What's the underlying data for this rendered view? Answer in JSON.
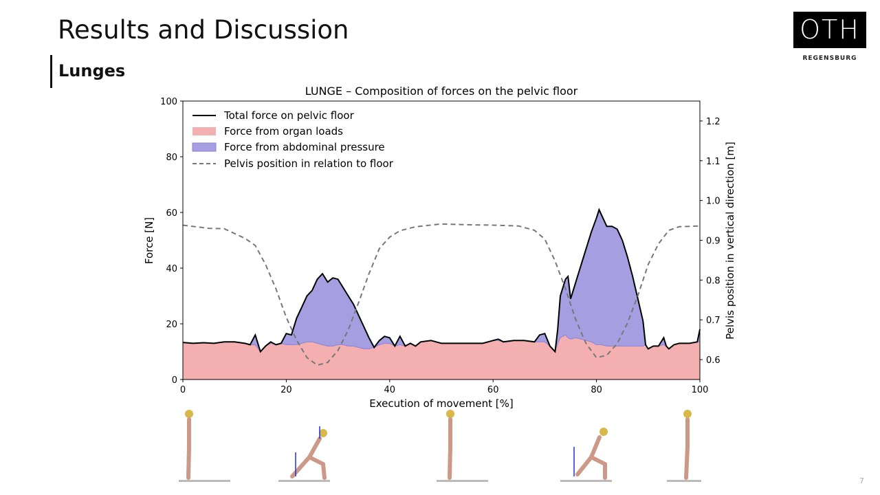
{
  "slide": {
    "title": "Results and Discussion",
    "subtitle": "Lunges",
    "logo_text": "OTH",
    "logo_sub": "REGENSBURG",
    "page": "7"
  },
  "chart_data": {
    "type": "area",
    "title": "LUNGE – Composition of forces on the pelvic floor",
    "xlabel": "Execution of movement [%]",
    "ylabel": "Force [N]",
    "y2label": "Pelvis position in vertical direction [m]",
    "xlim": [
      0,
      100
    ],
    "ylim": [
      0,
      100
    ],
    "y2lim": [
      0.55,
      1.25
    ],
    "xticks": [
      "0",
      "20",
      "40",
      "60",
      "80",
      "100"
    ],
    "yticks": [
      "0",
      "20",
      "40",
      "60",
      "80",
      "100"
    ],
    "y2ticks": [
      "0.6",
      "0.7",
      "0.8",
      "0.9",
      "1.0",
      "1.1",
      "1.2"
    ],
    "legend": {
      "placement": "top-left",
      "entries": [
        "Total force on pelvic floor",
        "Force from organ loads",
        "Force from abdominal pressure",
        "Pelvis position in relation to floor"
      ]
    },
    "colors": {
      "total": "#000000",
      "organ": "#f4b0b0",
      "abdominal": "#a59ee0",
      "pelvis": "#777777"
    },
    "force_x": [
      0,
      2,
      4,
      6,
      8,
      10,
      12,
      13,
      14,
      15,
      16,
      17,
      18,
      19,
      20,
      21,
      22,
      23,
      24,
      25,
      26,
      27,
      28,
      29,
      30,
      31,
      32,
      33,
      34,
      35,
      36,
      37,
      38,
      39,
      40,
      41,
      42,
      43,
      44,
      45,
      46,
      48,
      50,
      54,
      58,
      60,
      61,
      62,
      64,
      66,
      68,
      69,
      70,
      71,
      72,
      72.5,
      73,
      74,
      74.5,
      75,
      76,
      77,
      78,
      79,
      80,
      80.5,
      81,
      82,
      83,
      84,
      85,
      86,
      87,
      88,
      89,
      89.5,
      90,
      91,
      92,
      93,
      93.5,
      94,
      95,
      96,
      98,
      99.5,
      100
    ],
    "total": [
      13.3,
      13,
      13.2,
      13,
      13.5,
      13.5,
      13,
      12.5,
      16,
      10,
      12,
      13.5,
      12.5,
      13,
      16.5,
      16,
      22,
      26,
      30,
      32,
      36,
      38,
      35,
      36.5,
      36,
      33,
      30,
      27,
      23,
      19,
      15,
      11.5,
      14,
      15.5,
      15,
      12,
      15.5,
      12,
      13,
      12,
      13.5,
      14,
      13,
      13,
      13,
      14,
      14.5,
      13.5,
      14,
      14,
      13.5,
      16,
      16.5,
      12,
      10,
      18,
      30,
      36,
      37,
      29,
      35,
      41,
      47,
      53,
      58,
      61,
      59,
      55,
      55,
      54,
      50,
      44,
      37,
      29,
      21,
      12.5,
      11,
      12,
      12,
      15,
      12,
      11,
      12.5,
      13,
      13,
      13.5,
      18
    ],
    "organ": [
      13.3,
      13,
      13.2,
      13,
      13.5,
      13.5,
      13,
      12.5,
      12.5,
      10,
      12,
      13,
      12.5,
      13,
      12.5,
      12.5,
      12.5,
      13,
      13.5,
      13.5,
      13,
      12.5,
      12,
      12,
      12.5,
      12.5,
      12,
      12,
      11.5,
      11,
      11,
      11.5,
      12.5,
      13,
      13,
      12,
      12.5,
      12,
      13,
      12,
      13.5,
      14,
      13,
      13,
      13,
      14,
      14,
      13.5,
      14,
      14,
      13.5,
      13.5,
      13.5,
      12,
      10,
      13,
      15,
      16,
      15,
      14.5,
      15,
      14.5,
      14,
      13.5,
      12.5,
      12.5,
      12.5,
      12,
      12,
      12,
      12,
      12,
      12,
      12,
      12,
      12.5,
      11,
      12,
      12,
      12.5,
      12,
      11,
      12.5,
      13,
      13,
      13.5,
      13.5
    ],
    "pelvis_x": [
      0,
      5,
      8,
      10,
      12,
      14,
      16,
      18,
      20,
      22,
      24,
      26,
      28,
      30,
      32,
      34,
      36,
      38,
      40,
      42,
      45,
      50,
      55,
      60,
      65,
      68,
      70,
      72,
      74,
      76,
      78,
      80,
      82,
      84,
      86,
      88,
      90,
      92,
      94,
      96,
      100
    ],
    "pelvis": [
      0.938,
      0.93,
      0.929,
      0.917,
      0.905,
      0.887,
      0.839,
      0.778,
      0.706,
      0.649,
      0.605,
      0.586,
      0.593,
      0.623,
      0.675,
      0.744,
      0.816,
      0.879,
      0.908,
      0.924,
      0.934,
      0.941,
      0.939,
      0.938,
      0.936,
      0.925,
      0.903,
      0.848,
      0.778,
      0.7,
      0.64,
      0.605,
      0.611,
      0.64,
      0.692,
      0.761,
      0.839,
      0.891,
      0.925,
      0.934,
      0.936
    ]
  }
}
